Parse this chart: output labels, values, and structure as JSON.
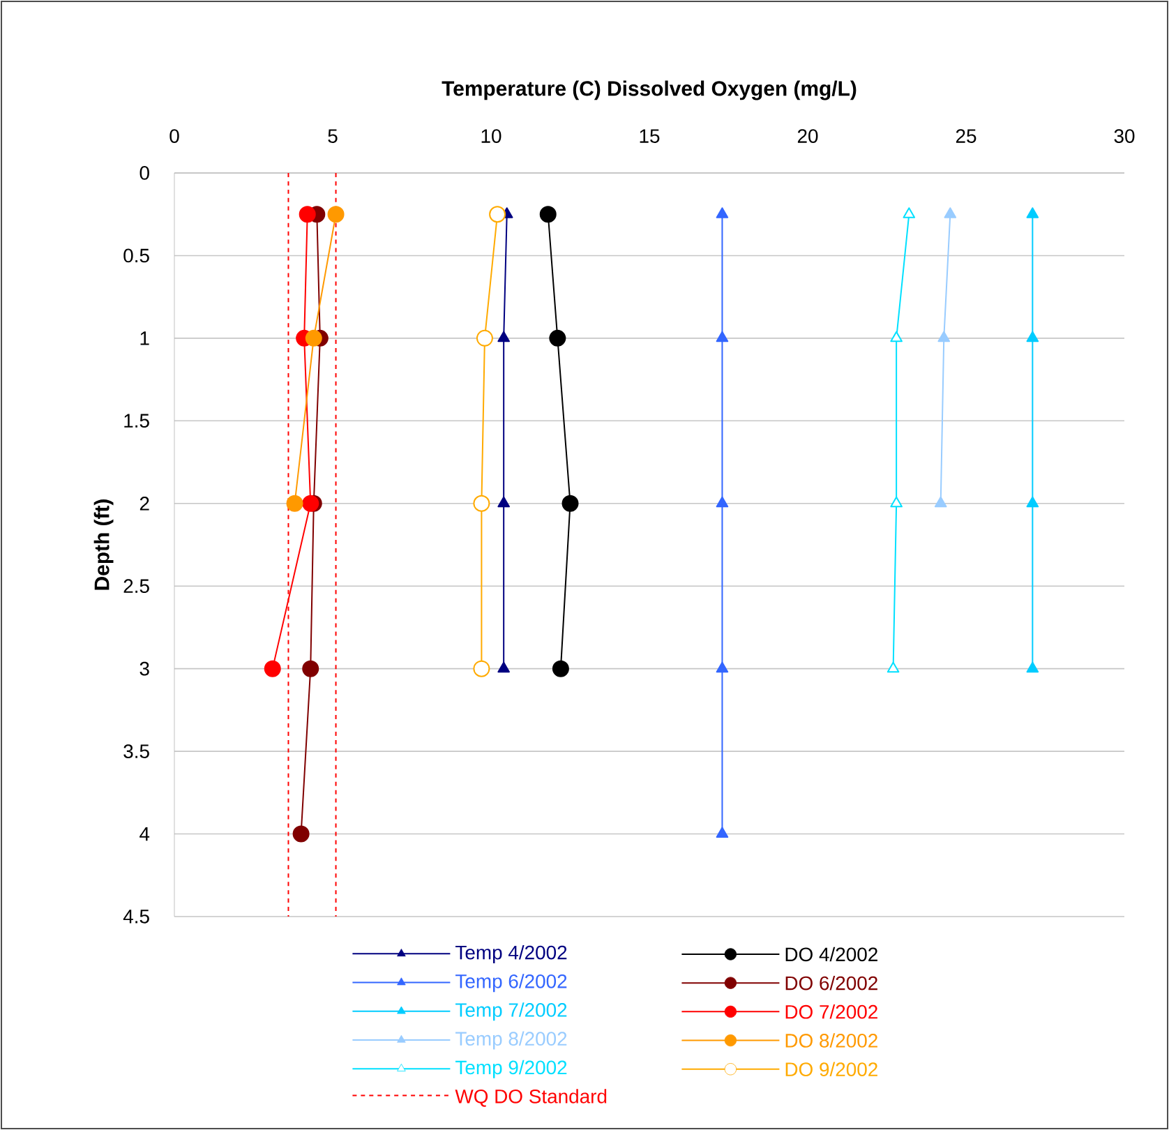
{
  "chart_data": {
    "type": "line",
    "xlabel": "Temperature (C) Dissolved Oxygen (mg/L)",
    "ylabel": "Depth (ft)",
    "xlim": [
      0,
      30
    ],
    "xticks": [
      0,
      5,
      10,
      15,
      20,
      25,
      30
    ],
    "ylim": [
      4.5,
      0
    ],
    "yticks": [
      0,
      0.5,
      1,
      1.5,
      2,
      2.5,
      3,
      3.5,
      4,
      4.5
    ],
    "grid": "y",
    "legend": "bottom",
    "series": [
      {
        "name": "Temp 4/2002",
        "color": "#000080",
        "marker": "triangle",
        "x": [
          10.5,
          10.4,
          10.4,
          10.4
        ],
        "values": [
          0.25,
          1,
          2,
          3
        ]
      },
      {
        "name": "DO 4/2002",
        "color": "#000000",
        "marker": "circle",
        "x": [
          11.8,
          12.1,
          12.5,
          12.2
        ],
        "values": [
          0.25,
          1,
          2,
          3
        ]
      },
      {
        "name": "Temp 6/2002",
        "color": "#3366ff",
        "marker": "triangle",
        "x": [
          17.3,
          17.3,
          17.3,
          17.3,
          17.3
        ],
        "values": [
          0.25,
          1,
          2,
          3,
          4
        ]
      },
      {
        "name": "DO 6/2002",
        "color": "#800000",
        "marker": "circle",
        "x": [
          4.5,
          4.6,
          4.4,
          4.3,
          4.0
        ],
        "values": [
          0.25,
          1,
          2,
          3,
          4
        ]
      },
      {
        "name": "Temp 7/2002",
        "color": "#00ccff",
        "marker": "triangle",
        "x": [
          27.1,
          27.1,
          27.1,
          27.1
        ],
        "values": [
          0.25,
          1,
          2,
          3
        ]
      },
      {
        "name": "DO 7/2002",
        "color": "#ff0000",
        "marker": "circle",
        "x": [
          4.2,
          4.1,
          4.3,
          3.1
        ],
        "values": [
          0.25,
          1,
          2,
          3
        ]
      },
      {
        "name": "Temp 8/2002",
        "color": "#99ccff",
        "marker": "triangle",
        "x": [
          24.5,
          24.3,
          24.2
        ],
        "values": [
          0.25,
          1,
          2
        ]
      },
      {
        "name": "DO 8/2002",
        "color": "#ff9900",
        "marker": "circle",
        "x": [
          5.1,
          4.4,
          3.8
        ],
        "values": [
          0.25,
          1,
          2
        ]
      },
      {
        "name": "Temp 9/2002",
        "color": "#00e0ff",
        "marker": "triangle-open",
        "x": [
          23.2,
          22.8,
          22.8,
          22.7
        ],
        "values": [
          0.25,
          1,
          2,
          3
        ]
      },
      {
        "name": "DO 9/2002",
        "color": "#ffaa00",
        "marker": "circle-open",
        "x": [
          10.2,
          9.8,
          9.7,
          9.7
        ],
        "values": [
          0.25,
          1,
          2,
          3
        ]
      }
    ],
    "ref_lines": [
      {
        "axis": "x",
        "value": 3.6,
        "label": "WQ DO Standard",
        "color": "#ff0000",
        "line_style": "dashed"
      },
      {
        "axis": "x",
        "value": 5.1,
        "color": "#ff0000",
        "line_style": "dashed"
      }
    ]
  }
}
